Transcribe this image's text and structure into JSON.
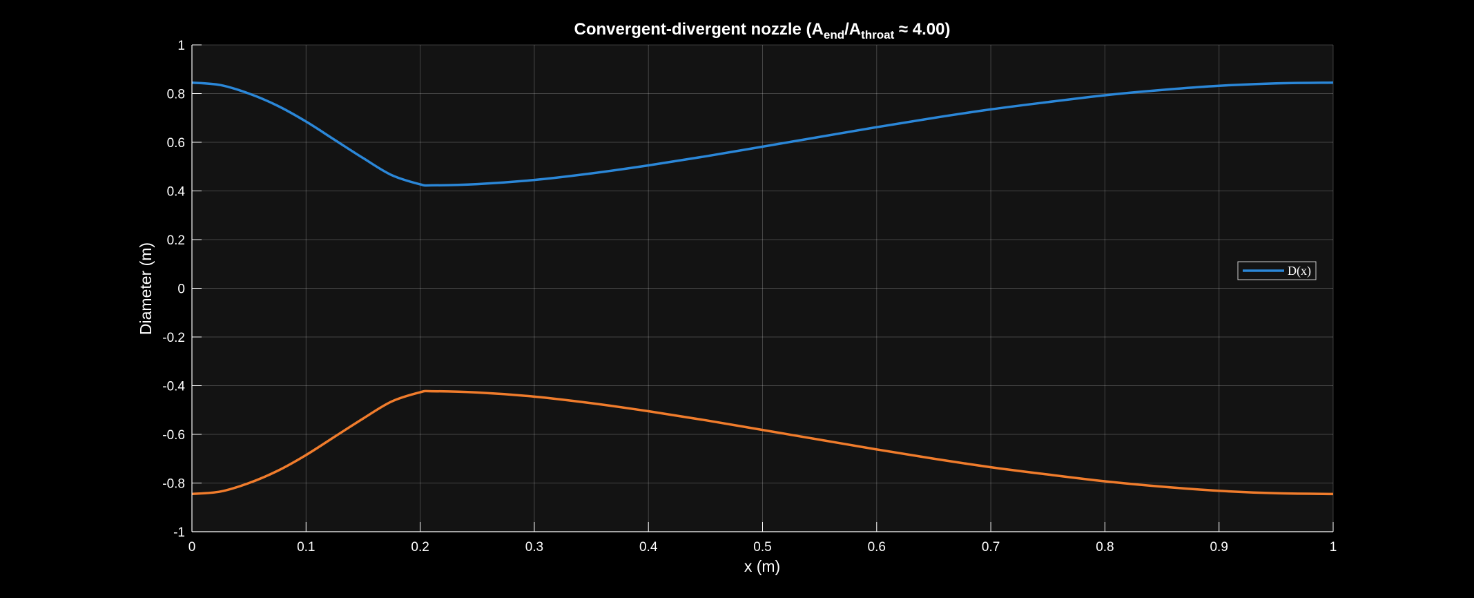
{
  "chart_data": {
    "type": "line",
    "title": {
      "main": "Convergent-divergent  nozzle  (A",
      "sub1": "end",
      "mid": "/A",
      "sub2": "throat",
      "tail": " ≈  4.00)"
    },
    "xlabel": "x (m)",
    "ylabel": "Diameter (m)",
    "xlim": [
      0,
      1
    ],
    "ylim": [
      -1,
      1
    ],
    "xticks": [
      0,
      0.1,
      0.2,
      0.3,
      0.4,
      0.5,
      0.6,
      0.7,
      0.8,
      0.9,
      1
    ],
    "xtick_labels": [
      "0",
      "0.1",
      "0.2",
      "0.3",
      "0.4",
      "0.5",
      "0.6",
      "0.7",
      "0.8",
      "0.9",
      "1"
    ],
    "yticks": [
      1,
      0.8,
      0.6,
      0.4,
      0.2,
      0,
      -0.2,
      -0.4,
      -0.6,
      -0.8,
      -1
    ],
    "ytick_labels": [
      "1",
      "0.8",
      "0.6",
      "0.4",
      "0.2",
      "0",
      "-0.2",
      "-0.4",
      "-0.6",
      "-0.8",
      "-1"
    ],
    "grid": true,
    "legend": {
      "placement": "right",
      "entries": [
        "D(x)"
      ]
    },
    "x": [
      0,
      0.025,
      0.05,
      0.075,
      0.1,
      0.125,
      0.15,
      0.175,
      0.2,
      0.21,
      0.25,
      0.3,
      0.35,
      0.4,
      0.45,
      0.5,
      0.55,
      0.6,
      0.65,
      0.7,
      0.75,
      0.8,
      0.85,
      0.9,
      0.95,
      1
    ],
    "series": [
      {
        "name": "D(x)",
        "color": "#2b87d8",
        "values": [
          0.845,
          0.835,
          0.8,
          0.75,
          0.685,
          0.61,
          0.535,
          0.465,
          0.427,
          0.423,
          0.428,
          0.445,
          0.472,
          0.505,
          0.542,
          0.582,
          0.622,
          0.662,
          0.7,
          0.735,
          0.765,
          0.793,
          0.815,
          0.832,
          0.842,
          0.845
        ]
      },
      {
        "color": "#f07c2c",
        "values": [
          -0.845,
          -0.835,
          -0.8,
          -0.75,
          -0.685,
          -0.61,
          -0.535,
          -0.465,
          -0.427,
          -0.423,
          -0.428,
          -0.445,
          -0.472,
          -0.505,
          -0.542,
          -0.582,
          -0.622,
          -0.662,
          -0.7,
          -0.735,
          -0.765,
          -0.793,
          -0.815,
          -0.832,
          -0.842,
          -0.845
        ]
      }
    ]
  }
}
